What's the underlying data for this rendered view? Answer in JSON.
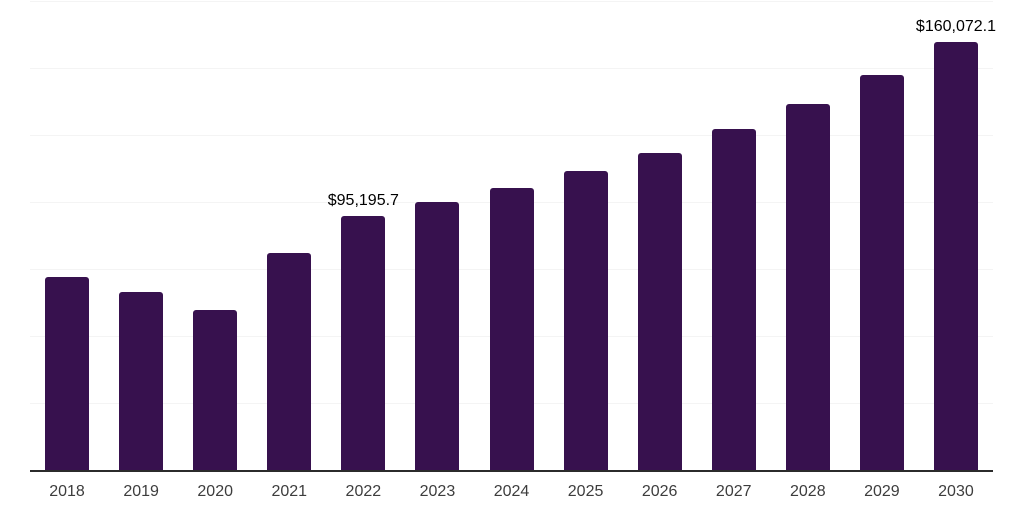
{
  "chart_data": {
    "type": "bar",
    "title": "",
    "xlabel": "",
    "ylabel": "",
    "categories": [
      "2018",
      "2019",
      "2020",
      "2021",
      "2022",
      "2023",
      "2024",
      "2025",
      "2026",
      "2027",
      "2028",
      "2029",
      "2030"
    ],
    "values": [
      72500,
      66700,
      60000,
      81500,
      95195.7,
      100500,
      105500,
      111900,
      118800,
      127500,
      136900,
      147700,
      160072.1
    ],
    "data_labels": [
      {
        "category": "2022",
        "text": "$95,195.7"
      },
      {
        "category": "2030",
        "text": "$160,072.1"
      }
    ],
    "ylim": [
      0,
      175000
    ],
    "gridline_interval": 25000,
    "grid": true,
    "legend": false,
    "bar_color": "#37114E",
    "gridline_color": "#f4f4f4",
    "axis_line_color": "#2b2b2b",
    "tick_label_color": "#3d3d3d",
    "data_label_color": "#000000"
  }
}
